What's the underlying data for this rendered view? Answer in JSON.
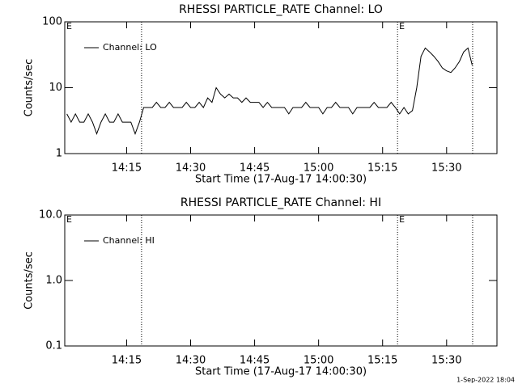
{
  "chart_data": [
    {
      "type": "line",
      "title": "RHESSI PARTICLE_RATE Channel: LO",
      "x_label": "Start Time (17-Aug-17 14:00:30)",
      "y_label": "Counts/sec",
      "log_y": true,
      "grid": false,
      "legend": "upper left",
      "xlim": [
        840.5,
        941.8
      ],
      "xticks": [
        {
          "value": 855,
          "label": "14:15"
        },
        {
          "value": 870,
          "label": "14:30"
        },
        {
          "value": 885,
          "label": "14:45"
        },
        {
          "value": 900,
          "label": "15:00"
        },
        {
          "value": 915,
          "label": "15:15"
        },
        {
          "value": 930,
          "label": "15:30"
        }
      ],
      "ylim": [
        1,
        100
      ],
      "yticks": [
        1,
        10,
        100
      ],
      "vlines": [
        858.5,
        918.5,
        936.1
      ],
      "annotations": [
        {
          "text": "E",
          "x": 840.5
        },
        {
          "text": "E",
          "x": 918.5
        }
      ],
      "x": [
        841,
        842,
        843,
        844,
        845,
        846,
        847,
        848,
        849,
        850,
        851,
        852,
        853,
        854,
        855,
        856,
        857,
        858,
        859,
        860,
        861,
        862,
        863,
        864,
        865,
        866,
        867,
        868,
        869,
        870,
        871,
        872,
        873,
        874,
        875,
        876,
        877,
        878,
        879,
        880,
        881,
        882,
        883,
        884,
        885,
        886,
        887,
        888,
        889,
        890,
        891,
        892,
        893,
        894,
        895,
        896,
        897,
        898,
        899,
        900,
        901,
        902,
        903,
        904,
        905,
        906,
        907,
        908,
        909,
        910,
        911,
        912,
        913,
        914,
        915,
        916,
        917,
        918,
        919,
        920,
        921,
        922,
        923,
        924,
        925,
        926,
        927,
        928,
        929,
        930,
        931,
        932,
        933,
        934,
        935,
        936
      ],
      "series": [
        {
          "name": "Channel: LO",
          "color": "#000000",
          "values": [
            4,
            3,
            4,
            3,
            3,
            4,
            3,
            2,
            3,
            4,
            3,
            3,
            4,
            3,
            3,
            3,
            2,
            3,
            5,
            5,
            5,
            6,
            5,
            5,
            6,
            5,
            5,
            5,
            6,
            5,
            5,
            6,
            5,
            7,
            6,
            10,
            8,
            7,
            8,
            7,
            7,
            6,
            7,
            6,
            6,
            6,
            5,
            6,
            5,
            5,
            5,
            5,
            4,
            5,
            5,
            5,
            6,
            5,
            5,
            5,
            4,
            5,
            5,
            6,
            5,
            5,
            5,
            4,
            5,
            5,
            5,
            5,
            6,
            5,
            5,
            5,
            6,
            5,
            4,
            5,
            4,
            4.5,
            10,
            30,
            40,
            35,
            30,
            25,
            20,
            18,
            17,
            20,
            25,
            35,
            40,
            22
          ]
        }
      ]
    },
    {
      "type": "line",
      "title": "RHESSI PARTICLE_RATE Channel: HI",
      "x_label": "Start Time (17-Aug-17 14:00:30)",
      "y_label": "Counts/sec",
      "log_y": true,
      "grid": false,
      "legend": "upper left",
      "xlim": [
        840.5,
        941.8
      ],
      "xticks": [
        {
          "value": 855,
          "label": "14:15"
        },
        {
          "value": 870,
          "label": "14:30"
        },
        {
          "value": 885,
          "label": "14:45"
        },
        {
          "value": 900,
          "label": "15:00"
        },
        {
          "value": 915,
          "label": "15:15"
        },
        {
          "value": 930,
          "label": "15:30"
        }
      ],
      "ylim": [
        0.1,
        10
      ],
      "yticks": [
        {
          "value": 0.1,
          "label": "0.1"
        },
        {
          "value": 1,
          "label": "1.0"
        },
        {
          "value": 10,
          "label": "10.0"
        }
      ],
      "vlines": [
        858.5,
        918.5,
        936.1
      ],
      "annotations": [
        {
          "text": "E",
          "x": 840.5
        },
        {
          "text": "E",
          "x": 918.5
        }
      ],
      "x": [],
      "series": [
        {
          "name": "Channel: HI",
          "color": "#000000",
          "values": []
        }
      ]
    }
  ],
  "footer": "1-Sep-2022 18:04"
}
